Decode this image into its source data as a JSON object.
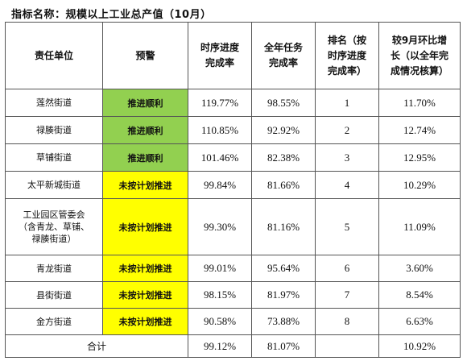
{
  "title": "指标名称：规模以上工业总产值（10月）",
  "headers": {
    "unit": "责任单位",
    "warning": "预警",
    "schedule_rate": [
      "时序进度",
      "完成率"
    ],
    "annual_rate": [
      "全年任务",
      "完成率"
    ],
    "rank": [
      "排名（按",
      "时序进度",
      "完成率）"
    ],
    "mom_growth": [
      "较9月环比增",
      "长（以全年完",
      "成情况核算）"
    ]
  },
  "rows": [
    {
      "unit": [
        "莲然街道"
      ],
      "warning": "推进顺利",
      "warning_color": "#92d050",
      "schedule_rate": "119.77%",
      "annual_rate": "98.55%",
      "rank": "1",
      "mom_growth": "11.70%"
    },
    {
      "unit": [
        "禄腠街道"
      ],
      "warning": "推进顺利",
      "warning_color": "#92d050",
      "schedule_rate": "110.85%",
      "annual_rate": "92.92%",
      "rank": "2",
      "mom_growth": "12.74%"
    },
    {
      "unit": [
        "草铺街道"
      ],
      "warning": "推进顺利",
      "warning_color": "#92d050",
      "schedule_rate": "101.46%",
      "annual_rate": "82.38%",
      "rank": "3",
      "mom_growth": "12.95%"
    },
    {
      "unit": [
        "太平新城街道"
      ],
      "warning": "未按计划推进",
      "warning_color": "#ffff00",
      "schedule_rate": "99.84%",
      "annual_rate": "81.66%",
      "rank": "4",
      "mom_growth": "10.29%"
    },
    {
      "unit": [
        "工业园区管委会",
        "（含青龙、草铺、",
        "禄腠街道）"
      ],
      "warning": "未按计划推进",
      "warning_color": "#ffff00",
      "schedule_rate": "99.30%",
      "annual_rate": "81.16%",
      "rank": "5",
      "mom_growth": "11.09%"
    },
    {
      "unit": [
        "青龙街道"
      ],
      "warning": "未按计划推进",
      "warning_color": "#ffff00",
      "schedule_rate": "99.01%",
      "annual_rate": "95.64%",
      "rank": "6",
      "mom_growth": "3.60%"
    },
    {
      "unit": [
        "县街街道"
      ],
      "warning": "未按计划推进",
      "warning_color": "#ffff00",
      "schedule_rate": "98.15%",
      "annual_rate": "81.97%",
      "rank": "7",
      "mom_growth": "8.54%"
    },
    {
      "unit": [
        "金方街道"
      ],
      "warning": "未按计划推进",
      "warning_color": "#ffff00",
      "schedule_rate": "90.58%",
      "annual_rate": "73.88%",
      "rank": "8",
      "mom_growth": "6.63%"
    }
  ],
  "total": {
    "label": "合计",
    "schedule_rate": "99.12%",
    "annual_rate": "81.07%",
    "mom_growth": "10.92%"
  }
}
